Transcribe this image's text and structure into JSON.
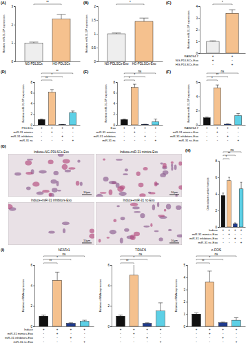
{
  "chart_data": [
    {
      "type": "bar",
      "panel": "(A)",
      "y_label": "Relative miR-31-5P expression",
      "categories": [
        "NG-PDLSCs",
        "HG-PDLSCs"
      ],
      "values": [
        1,
        2.3
      ],
      "errors": [
        0.05,
        0.25
      ],
      "colors": [
        "#eeeeee",
        "#f5c18e"
      ],
      "ylim": [
        0,
        3
      ],
      "yticks": [
        0,
        1,
        2,
        3
      ],
      "annotations": [
        {
          "text": "**",
          "from": 0,
          "to": 1
        }
      ]
    },
    {
      "type": "bar",
      "panel": "(B)",
      "y_label": "Relative miR-31-5P expression",
      "categories": [
        "NG-PDLSCs-Exo",
        "HG-PDLSCs-Exo"
      ],
      "values": [
        1,
        1.45
      ],
      "errors": [
        0.03,
        0.12
      ],
      "colors": [
        "#eeeeee",
        "#f5c18e"
      ],
      "ylim": [
        0,
        2
      ],
      "yticks": [
        0,
        0.5,
        1,
        1.5,
        2
      ],
      "annotations": [
        {
          "text": "*",
          "from": 0,
          "to": 1
        }
      ]
    },
    {
      "type": "bar",
      "panel": "(C)",
      "y_label": "Relative miR-31-5P expression",
      "categories": [
        null,
        null
      ],
      "values": [
        1,
        3.4
      ],
      "errors": [
        0.05,
        0.3
      ],
      "colors": [
        "#eeeeee",
        "#f5c18e"
      ],
      "ylim": [
        0,
        4
      ],
      "yticks": [
        0,
        1,
        2,
        3,
        4
      ],
      "conditions": {
        "labels": [
          "RAW264.7",
          "NG-PDLSCs-Exo",
          "HG-PDLSCs-Exo"
        ],
        "marks": [
          [
            "+",
            "+"
          ],
          [
            "+",
            "-"
          ],
          [
            "-",
            "+"
          ]
        ]
      },
      "annotations": [
        {
          "text": "*",
          "from": 0,
          "to": 1
        }
      ]
    },
    {
      "type": "bar",
      "panel": "(D)",
      "y_label": "Relative miR-31-5P expression",
      "categories": [
        null,
        null,
        null,
        null
      ],
      "values": [
        1,
        6.1,
        0.05,
        2.3
      ],
      "errors": [
        0.1,
        0.5,
        0.02,
        0.3
      ],
      "colors": [
        "#111111",
        "#f5c18e",
        "#1f3b8f",
        "#5dd0e6"
      ],
      "ylim": [
        0,
        8
      ],
      "yticks": [
        0,
        2,
        4,
        6,
        8
      ],
      "conditions": {
        "labels": [
          "PDLSCs",
          "miR-31 mimics",
          "miR-31 inhibitors",
          "miR-31 nc"
        ],
        "marks": [
          [
            "+",
            "+",
            "+",
            "+"
          ],
          [
            "-",
            "+",
            "-",
            "-"
          ],
          [
            "-",
            "-",
            "+",
            "-"
          ],
          [
            "-",
            "-",
            "-",
            "+"
          ]
        ]
      },
      "annotations": [
        {
          "text": "**",
          "from": 0,
          "to": 1
        },
        {
          "text": "*",
          "from": 0,
          "to": 2
        },
        {
          "text": "**",
          "from": 0,
          "to": 3
        }
      ]
    },
    {
      "type": "bar",
      "panel": "(E)",
      "y_label": "Relative miR-31-5P expression",
      "categories": [
        null,
        null,
        null,
        null
      ],
      "values": [
        1,
        7,
        0.1,
        0.6
      ],
      "errors": [
        0.1,
        0.6,
        0.03,
        0.5
      ],
      "colors": [
        "#111111",
        "#f5c18e",
        "#1f3b8f",
        "#5dd0e6"
      ],
      "ylim": [
        0,
        8
      ],
      "yticks": [
        0,
        2,
        4,
        6,
        8
      ],
      "conditions": {
        "labels": [
          "Exo",
          "miR-31 mimics",
          "miR-31 inhibitors",
          "miR-31 nc"
        ],
        "marks": [
          [
            "+",
            "+",
            "+",
            "+"
          ],
          [
            "-",
            "+",
            "-",
            "-"
          ],
          [
            "-",
            "-",
            "+",
            "-"
          ],
          [
            "-",
            "-",
            "-",
            "+"
          ]
        ]
      },
      "annotations": [
        {
          "text": "*",
          "from": 0,
          "to": 1
        },
        {
          "text": "*",
          "from": 0,
          "to": 2
        },
        {
          "text": "ns",
          "from": 0,
          "to": 3
        }
      ]
    },
    {
      "type": "bar",
      "panel": "(F)",
      "y_label": "Relative miR-31-5P expression",
      "categories": [
        null,
        null,
        null,
        null
      ],
      "values": [
        1,
        5.2,
        0.1,
        1.3
      ],
      "errors": [
        0.1,
        0.4,
        0.05,
        0.3
      ],
      "colors": [
        "#111111",
        "#f5c18e",
        "#1f3b8f",
        "#5dd0e6"
      ],
      "ylim": [
        0,
        6
      ],
      "yticks": [
        0,
        2,
        4,
        6
      ],
      "conditions": {
        "labels": [
          "RAW264.7",
          "miR-31 mimics-Exo",
          "miR-31 inhibitors-Exo",
          "miR-31 nc-Exo"
        ],
        "marks": [
          [
            "+",
            "+",
            "+",
            "+"
          ],
          [
            "-",
            "+",
            "-",
            "-"
          ],
          [
            "-",
            "-",
            "+",
            "-"
          ],
          [
            "-",
            "-",
            "-",
            "+"
          ]
        ]
      },
      "annotations": [
        {
          "text": "*",
          "from": 0,
          "to": 1
        },
        {
          "text": "**",
          "from": 0,
          "to": 2
        },
        {
          "text": "ns",
          "from": 0,
          "to": 3
        }
      ]
    },
    {
      "type": "bar",
      "panel": "(H)",
      "y_label": "Osteoclast number/sample",
      "categories": [
        null,
        null,
        null,
        null
      ],
      "values": [
        3.8,
        5.6,
        0.4,
        4.6
      ],
      "errors": [
        0.3,
        0.4,
        0.1,
        0.8
      ],
      "colors": [
        "#111111",
        "#f5c18e",
        "#1f3b8f",
        "#5dd0e6"
      ],
      "ylim": [
        0,
        8
      ],
      "yticks": [
        0,
        2,
        4,
        6,
        8
      ],
      "conditions": {
        "labels": [
          "Induce",
          "miR-31 mimics-Exo",
          "miR-31 inhibitors-Exo",
          "miR-31 nc-Exo"
        ],
        "marks": [
          [
            "+",
            "+",
            "+",
            "+"
          ],
          [
            "-",
            "+",
            "-",
            "-"
          ],
          [
            "-",
            "-",
            "+",
            "-"
          ],
          [
            "-",
            "-",
            "-",
            "+"
          ]
        ]
      },
      "annotations": [
        {
          "text": "*",
          "from": 0,
          "to": 1
        },
        {
          "text": "**",
          "from": 0,
          "to": 2
        },
        {
          "text": "ns",
          "from": 0,
          "to": 3
        }
      ]
    },
    {
      "type": "bar",
      "panel": "(I)",
      "title": "NFATc1",
      "y_label": "Relative mRNA expression",
      "categories": [
        null,
        null,
        null,
        null
      ],
      "values": [
        1,
        4.5,
        0.3,
        0.5
      ],
      "errors": [
        0.1,
        0.8,
        0.05,
        0.1
      ],
      "colors": [
        "#111111",
        "#f5c18e",
        "#1f3b8f",
        "#5dd0e6"
      ],
      "ylim": [
        0,
        6
      ],
      "yticks": [
        0,
        2,
        4,
        6
      ],
      "conditions": {
        "labels": [
          "Induce",
          "miR-31 mimics-Exo",
          "miR-31 inhibitors-Exo",
          "miR-31 nc-Exo"
        ],
        "marks": [
          [
            "+",
            "+",
            "+",
            "+"
          ],
          [
            "-",
            "+",
            "-",
            "-"
          ],
          [
            "-",
            "-",
            "+",
            "-"
          ],
          [
            "-",
            "-",
            "-",
            "+"
          ]
        ]
      },
      "annotations": [
        {
          "text": "**",
          "from": 0,
          "to": 1
        },
        {
          "text": "*",
          "from": 0,
          "to": 2
        },
        {
          "text": "ns",
          "from": 0,
          "to": 3
        }
      ]
    },
    {
      "type": "bar",
      "title": "TRAF6",
      "y_label": "Relative mRNA expression",
      "categories": [
        null,
        null,
        null,
        null
      ],
      "values": [
        1,
        5,
        0.3,
        1.5
      ],
      "errors": [
        0.1,
        1.2,
        0.05,
        0.8
      ],
      "colors": [
        "#111111",
        "#f5c18e",
        "#1f3b8f",
        "#5dd0e6"
      ],
      "ylim": [
        0,
        6
      ],
      "yticks": [
        0,
        2,
        4,
        6
      ],
      "conditions": {
        "marks": [
          [
            "+",
            "+",
            "+",
            "+"
          ],
          [
            "-",
            "+",
            "-",
            "-"
          ],
          [
            "-",
            "-",
            "+",
            "-"
          ],
          [
            "-",
            "-",
            "-",
            "+"
          ]
        ]
      },
      "annotations": [
        {
          "text": "**",
          "from": 0,
          "to": 1
        },
        {
          "text": "*",
          "from": 0,
          "to": 2
        },
        {
          "text": "ns",
          "from": 0,
          "to": 3
        }
      ]
    },
    {
      "type": "bar",
      "title": "c-FOS",
      "y_label": "Relative mRNA expression",
      "categories": [
        null,
        null,
        null,
        null
      ],
      "values": [
        1,
        3.6,
        0.3,
        0.5
      ],
      "errors": [
        0.1,
        0.9,
        0.05,
        0.2
      ],
      "colors": [
        "#111111",
        "#f5c18e",
        "#1f3b8f",
        "#5dd0e6"
      ],
      "ylim": [
        0,
        5
      ],
      "yticks": [
        0,
        1,
        2,
        3,
        4,
        5
      ],
      "conditions": {
        "marks": [
          [
            "+",
            "+",
            "+",
            "+"
          ],
          [
            "-",
            "+",
            "-",
            "-"
          ],
          [
            "-",
            "-",
            "+",
            "-"
          ],
          [
            "-",
            "-",
            "-",
            "+"
          ]
        ]
      },
      "annotations": [
        {
          "text": "**",
          "from": 0,
          "to": 1
        },
        {
          "text": "*",
          "from": 0,
          "to": 2
        },
        {
          "text": "ns",
          "from": 0,
          "to": 3
        }
      ]
    }
  ],
  "micrographs": {
    "panel": "(G)",
    "scale_bar": "10μm",
    "images": [
      {
        "label": "Induce+NG-PDLSCs-Exo"
      },
      {
        "label": "Induce+miR-31 mimics-Exo"
      },
      {
        "label": "Induce+miR-31 inhibitors-Exo"
      },
      {
        "label": "Induce+miR-31 nc-Exo"
      }
    ]
  }
}
